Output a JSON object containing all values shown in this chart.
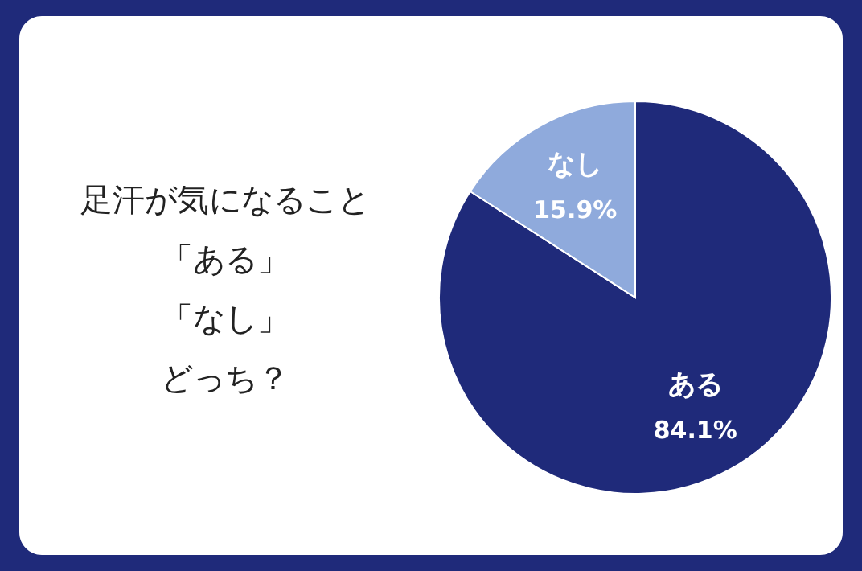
{
  "chart_data": {
    "type": "pie",
    "annotations": [
      "足汗が気になること",
      "「ある」",
      "「なし」",
      "どっち？"
    ],
    "categories": [
      "ある",
      "なし"
    ],
    "values": [
      84.1,
      15.9
    ],
    "colors": [
      "#1f2a7a",
      "#8faadc"
    ],
    "value_labels": [
      "84.1%",
      "15.9%"
    ]
  }
}
